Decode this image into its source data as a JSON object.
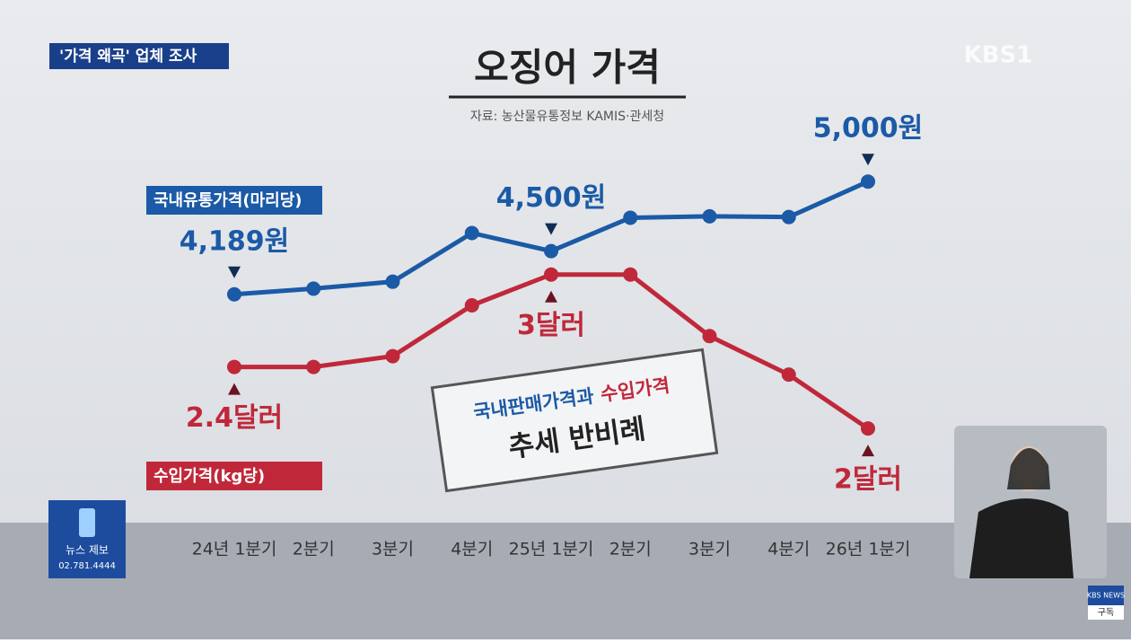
{
  "overlay": {
    "topic": "'가격 왜곡' 업체 조사",
    "logo": "KBS1",
    "tip_title": "뉴스 제보",
    "tip_phone": "02.781.4444",
    "sub_brand": "KBS NEWS",
    "sub_action": "구독"
  },
  "chart_data": {
    "type": "line",
    "title": "오징어 가격",
    "subtitle": "자료: 농산물유통정보 KAMIS·관세청",
    "categories": [
      "24년 1분기",
      "2분기",
      "3분기",
      "4분기",
      "25년 1분기",
      "2분기",
      "3분기",
      "4분기",
      "26년 1분기"
    ],
    "series": [
      {
        "name": "국내유통가격(마리당)",
        "color": "#1b5aa6",
        "values": [
          4189,
          4230,
          4280,
          4630,
          4500,
          4740,
          4750,
          4745,
          5000
        ],
        "value_labels": [
          "4,189원",
          null,
          null,
          null,
          "4,500원",
          null,
          null,
          null,
          "5,000원"
        ]
      },
      {
        "name": "수입가격(kg당)",
        "color": "#c0283a",
        "axis": "y2",
        "values": [
          2.4,
          2.4,
          2.47,
          2.8,
          3,
          3,
          2.6,
          2.35,
          2
        ],
        "value_labels": [
          "2.4달러",
          null,
          null,
          null,
          "3달러",
          null,
          null,
          null,
          "2달러"
        ]
      }
    ],
    "ylim": [
      2560,
      5660
    ],
    "y2lim": [
      1.4,
      4.2
    ],
    "annotation": {
      "part1": "국내판매가격과",
      "part2": "수입가격",
      "line2": "추세 반비례"
    }
  }
}
